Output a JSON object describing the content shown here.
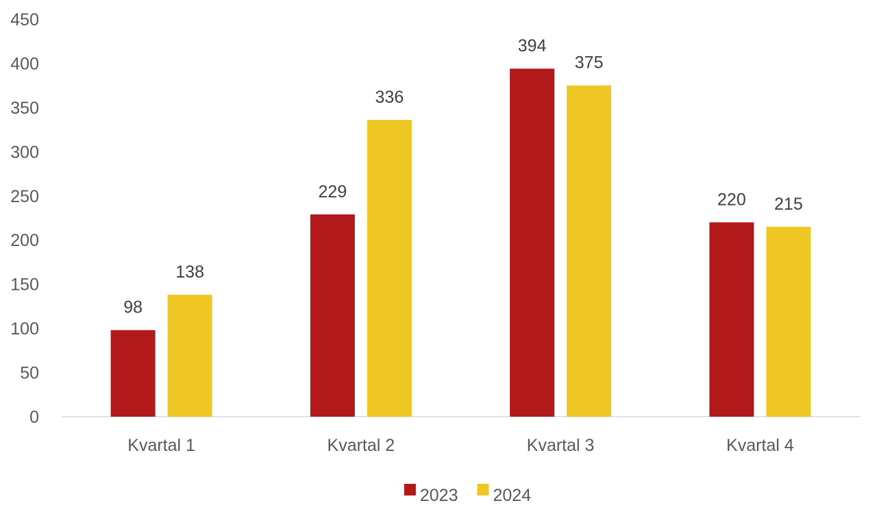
{
  "chart_data": {
    "type": "bar",
    "categories": [
      "Kvartal 1",
      "Kvartal 2",
      "Kvartal 3",
      "Kvartal 4"
    ],
    "series": [
      {
        "name": "2023",
        "color": "#B2191B",
        "values": [
          98,
          229,
          394,
          220
        ]
      },
      {
        "name": "2024",
        "color": "#EEC724",
        "values": [
          138,
          336,
          375,
          215
        ]
      }
    ],
    "ylim": [
      0,
      450
    ],
    "yticks": [
      0,
      50,
      100,
      150,
      200,
      250,
      300,
      350,
      400,
      450
    ],
    "grid": false,
    "data_labels": true,
    "legend_position": "bottom",
    "title": "",
    "xlabel": "",
    "ylabel": ""
  }
}
